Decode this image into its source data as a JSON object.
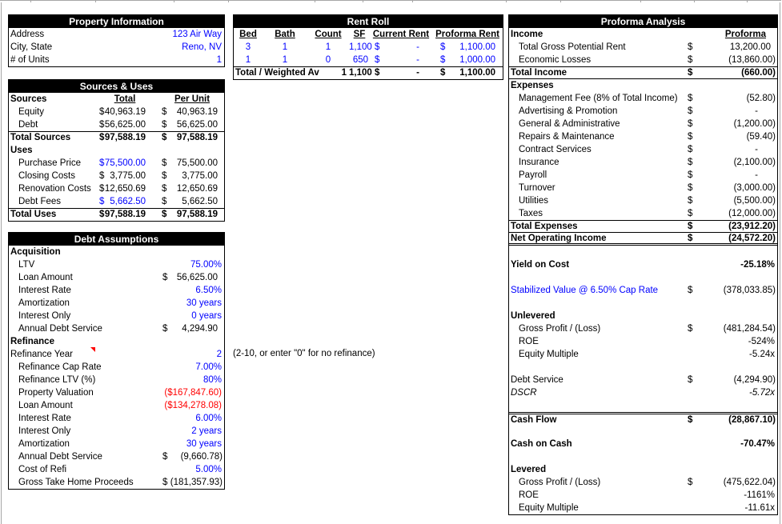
{
  "colors": {
    "input_blue": "#0000FF",
    "negative_red": "#FF0000",
    "header_bg": "#000000",
    "header_fg": "#FFFFFF"
  },
  "property_information": {
    "title": "Property Information",
    "rows": [
      {
        "label": "Address",
        "value": "123 Air Way"
      },
      {
        "label": "City, State",
        "value": "Reno, NV"
      },
      {
        "label": "# of Units",
        "value": "1"
      }
    ]
  },
  "sources_uses": {
    "title": "Sources & Uses",
    "col_headers": {
      "left": "Sources",
      "total": "Total",
      "per_unit": "Per Unit"
    },
    "rows": [
      {
        "label": "Equity",
        "d": "$",
        "t": "40,963.19",
        "p": "40,963.19",
        "ind": 1
      },
      {
        "label": "Debt",
        "d": "$",
        "t": "56,625.00",
        "p": "56,625.00",
        "ind": 1
      },
      {
        "label": "Total Sources",
        "d": "$",
        "t": "97,588.19",
        "p": "97,588.19",
        "b": 1,
        "border": "t"
      },
      {
        "label": "Uses",
        "b": 1
      },
      {
        "label": "Purchase Price",
        "d": "$",
        "t": "75,500.00",
        "p": "75,500.00",
        "ind": 1,
        "tblue": 1
      },
      {
        "label": "Closing Costs",
        "d": "$",
        "t": "3,775.00",
        "p": "3,775.00",
        "ind": 1
      },
      {
        "label": "Renovation Costs",
        "d": "$",
        "t": "12,650.69",
        "p": "12,650.69",
        "ind": 1
      },
      {
        "label": "Debt Fees",
        "d": "$",
        "t": "5,662.50",
        "p": "5,662.50",
        "ind": 1,
        "tblue": 1
      },
      {
        "label": "Total Uses",
        "d": "$",
        "t": "97,588.19",
        "p": "97,588.19",
        "b": 1,
        "border": "t"
      }
    ]
  },
  "rent_roll": {
    "title": "Rent Roll",
    "col_headers": [
      "Bed",
      "Bath",
      "Count",
      "SF",
      "Current Rent",
      "Proforma Rent"
    ],
    "rows": [
      {
        "bed": "3",
        "bath": "1",
        "count": "1",
        "sf": "1,100",
        "cur_d": "$",
        "cur": "-",
        "pro_d": "$",
        "pro": "1,100.00"
      },
      {
        "bed": "1",
        "bath": "1",
        "count": "0",
        "sf": "650",
        "cur_d": "$",
        "cur": "-",
        "pro_d": "$",
        "pro": "1,000.00"
      }
    ],
    "total_row": {
      "label": "Total / Weighted Av",
      "count": "1",
      "sf": "1,100",
      "cur_d": "$",
      "cur": "-",
      "pro_d": "$",
      "pro": "1,100.00"
    }
  },
  "debt_assumptions": {
    "title": "Debt Assumptions",
    "rows": [
      {
        "label": "Acquisition",
        "b": 1
      },
      {
        "label": "LTV",
        "v": "75.00%",
        "vcls": "blue",
        "ind": 1
      },
      {
        "label": "Loan Amount",
        "d": "$",
        "v": "56,625.00",
        "ind": 1
      },
      {
        "label": "Interest Rate",
        "v": "6.50%",
        "vcls": "blue",
        "ind": 1
      },
      {
        "label": "Amortization",
        "v": "30 years",
        "vcls": "blue",
        "ind": 1
      },
      {
        "label": "Interest Only",
        "v": "0 years",
        "vcls": "blue",
        "ind": 1
      },
      {
        "label": "Annual Debt Service",
        "d": "$",
        "v": "4,294.90",
        "ind": 1
      },
      {
        "label": "Refinance",
        "b": 1
      },
      {
        "label": "Refinance Year",
        "v": "2",
        "vcls": "blue"
      },
      {
        "label": "Refinance Cap Rate",
        "v": "7.00%",
        "vcls": "blue",
        "ind": 1
      },
      {
        "label": "Refinance LTV (%)",
        "v": "80%",
        "vcls": "blue",
        "ind": 1
      },
      {
        "label": "Property Valuation",
        "v": "($167,847.60)",
        "vcls": "red",
        "ind": 1
      },
      {
        "label": "Loan Amount",
        "v": "($134,278.08)",
        "vcls": "red",
        "ind": 1
      },
      {
        "label": "Interest Rate",
        "v": "6.00%",
        "vcls": "blue",
        "ind": 1
      },
      {
        "label": "Interest Only",
        "v": "2 years",
        "vcls": "blue",
        "ind": 1
      },
      {
        "label": "Amortization",
        "v": "30 years",
        "vcls": "blue",
        "ind": 1
      },
      {
        "label": "Annual Debt Service",
        "d": "$",
        "v": "(9,660.78)",
        "ind": 1
      },
      {
        "label": "Cost of Refi",
        "v": "5.00%",
        "vcls": "blue",
        "ind": 1
      },
      {
        "label": "Gross Take Home Proceeds",
        "d": "$",
        "v": "(181,357.93)",
        "ind": 1
      }
    ]
  },
  "refinance_note": "(2-10, or enter \"0\" for no refinance)",
  "proforma_analysis": {
    "title": "Proforma Analysis",
    "col_headers": {
      "left": "Income",
      "right": "Proforma"
    },
    "rows": [
      {
        "label": "Total Gross Potential Rent",
        "d": "$",
        "v": "13,200.00",
        "ind": 1
      },
      {
        "label": "Economic Losses",
        "d": "$",
        "v": "(13,860.00)",
        "ind": 1
      },
      {
        "label": "Total Income",
        "d": "$",
        "v": "(660.00)",
        "b": 1,
        "border": "tb"
      },
      {
        "label": "Expenses",
        "b": 1
      },
      {
        "label": "Management Fee (8% of Total Income)",
        "d": "$",
        "v": "(52.80)",
        "ind": 1
      },
      {
        "label": "Advertising & Promotion",
        "d": "$",
        "v": "-",
        "ind": 1
      },
      {
        "label": "General & Administrative",
        "d": "$",
        "v": "(1,200.00)",
        "ind": 1
      },
      {
        "label": "Repairs & Maintenance",
        "d": "$",
        "v": "(59.40)",
        "ind": 1
      },
      {
        "label": "Contract Services",
        "d": "$",
        "v": "-",
        "ind": 1
      },
      {
        "label": "Insurance",
        "d": "$",
        "v": "(2,100.00)",
        "ind": 1
      },
      {
        "label": "Payroll",
        "d": "$",
        "v": "-",
        "ind": 1
      },
      {
        "label": "Turnover",
        "d": "$",
        "v": "(3,000.00)",
        "ind": 1
      },
      {
        "label": "Utilities",
        "d": "$",
        "v": "(5,500.00)",
        "ind": 1
      },
      {
        "label": "Taxes",
        "d": "$",
        "v": "(12,000.00)",
        "ind": 1
      },
      {
        "label": "Total Expenses",
        "d": "$",
        "v": "(23,912.20)",
        "b": 1,
        "border": "tb"
      },
      {
        "label": "Net Operating Income",
        "d": "$",
        "v": "(24,572.20)",
        "b": 1,
        "border": "dbb"
      },
      {},
      {
        "label": "Yield on Cost",
        "v": "-25.18%",
        "b": 1
      },
      {},
      {
        "label": "Stabilized Value @ 6.50% Cap Rate",
        "d": "$",
        "v": "(378,033.85)",
        "lcls": "blue"
      },
      {},
      {
        "label": "Unlevered",
        "b": 1
      },
      {
        "label": "Gross Profit / (Loss)",
        "d": "$",
        "v": "(481,284.54)",
        "ind": 1
      },
      {
        "label": "ROE",
        "v": "-524%",
        "ind": 1
      },
      {
        "label": "Equity Multiple",
        "v": "-5.24x",
        "ind": 1
      },
      {},
      {
        "label": "Debt Service",
        "d": "$",
        "v": "(4,294.90)"
      },
      {
        "label": "DSCR",
        "v": "-5.72x",
        "i": 1
      },
      {},
      {
        "label": "Cash Flow",
        "d": "$",
        "v": "(28,867.10)",
        "b": 1,
        "border": "dbt"
      },
      {},
      {
        "label": "Cash on Cash",
        "v": "-70.47%",
        "b": 1
      },
      {},
      {
        "label": "Levered",
        "b": 1
      },
      {
        "label": "Gross Profit / (Loss)",
        "d": "$",
        "v": "(475,622.04)",
        "ind": 1
      },
      {
        "label": "ROE",
        "v": "-1161%",
        "ind": 1
      },
      {
        "label": "Equity Multiple",
        "v": "-11.61x",
        "ind": 1
      }
    ]
  }
}
